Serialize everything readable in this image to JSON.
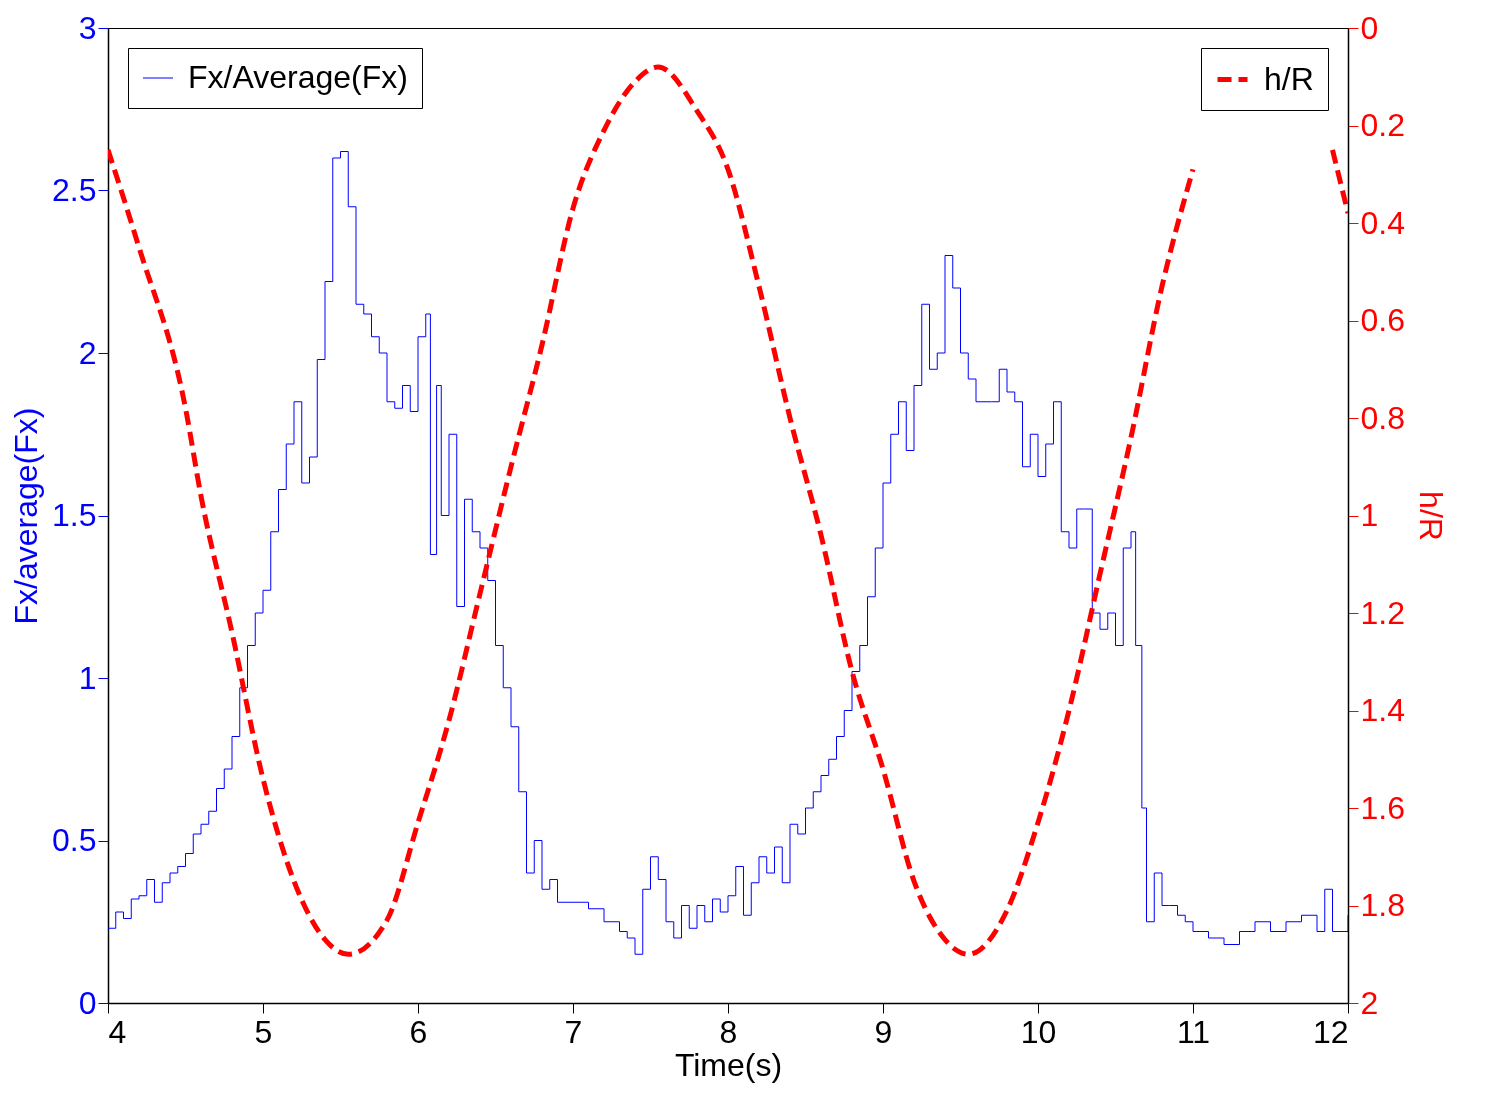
{
  "chart_data": {
    "type": "line",
    "xlabel": "Time(s)",
    "ylabel": "Fx/average(Fx)",
    "y2label": "h/R",
    "xlim": [
      4,
      12
    ],
    "xticks": [
      4,
      5,
      6,
      7,
      8,
      9,
      10,
      11,
      12
    ],
    "ylim": [
      0,
      3
    ],
    "yticks": [
      0,
      0.5,
      1,
      1.5,
      2,
      2.5,
      3
    ],
    "y2lim": [
      2,
      0
    ],
    "y2ticks": [
      0,
      0.2,
      0.4,
      0.6,
      0.8,
      1,
      1.2,
      1.4,
      1.6,
      1.8,
      2
    ],
    "grid": false,
    "legend": "top",
    "series": [
      {
        "name": "Fx/Average(Fx)",
        "type": "step",
        "color": "#0000ff",
        "line_style": "solid",
        "x": [
          4.0,
          4.05,
          4.1,
          4.15,
          4.2,
          4.25,
          4.3,
          4.35,
          4.4,
          4.45,
          4.5,
          4.55,
          4.6,
          4.65,
          4.7,
          4.75,
          4.8,
          4.85,
          4.9,
          4.95,
          5.0,
          5.05,
          5.1,
          5.15,
          5.2,
          5.25,
          5.3,
          5.35,
          5.4,
          5.45,
          5.5,
          5.55,
          5.6,
          5.65,
          5.7,
          5.75,
          5.8,
          5.85,
          5.9,
          5.95,
          6.0,
          6.05,
          6.08,
          6.12,
          6.15,
          6.2,
          6.25,
          6.3,
          6.35,
          6.4,
          6.45,
          6.5,
          6.55,
          6.6,
          6.65,
          6.7,
          6.75,
          6.8,
          6.85,
          6.9,
          7.0,
          7.1,
          7.2,
          7.3,
          7.35,
          7.4,
          7.45,
          7.5,
          7.55,
          7.6,
          7.65,
          7.7,
          7.75,
          7.8,
          7.85,
          7.9,
          7.95,
          8.0,
          8.05,
          8.1,
          8.15,
          8.2,
          8.25,
          8.3,
          8.35,
          8.4,
          8.45,
          8.5,
          8.55,
          8.6,
          8.65,
          8.7,
          8.75,
          8.8,
          8.85,
          8.9,
          8.95,
          9.0,
          9.05,
          9.1,
          9.15,
          9.2,
          9.25,
          9.3,
          9.35,
          9.4,
          9.45,
          9.5,
          9.55,
          9.6,
          9.7,
          9.75,
          9.8,
          9.85,
          9.9,
          9.95,
          10.0,
          10.05,
          10.1,
          10.15,
          10.2,
          10.25,
          10.3,
          10.35,
          10.4,
          10.45,
          10.5,
          10.55,
          10.6,
          10.63,
          10.67,
          10.7,
          10.75,
          10.8,
          10.85,
          10.9,
          10.95,
          11.0,
          11.1,
          11.2,
          11.3,
          11.4,
          11.5,
          11.6,
          11.7,
          11.8,
          11.85,
          11.9,
          12.0
        ],
        "values": [
          0.23,
          0.28,
          0.26,
          0.32,
          0.33,
          0.38,
          0.31,
          0.37,
          0.4,
          0.42,
          0.46,
          0.52,
          0.55,
          0.59,
          0.66,
          0.72,
          0.82,
          0.97,
          1.1,
          1.2,
          1.27,
          1.45,
          1.58,
          1.72,
          1.85,
          1.6,
          1.68,
          1.98,
          2.22,
          2.6,
          2.62,
          2.45,
          2.15,
          2.12,
          2.05,
          2.0,
          1.85,
          1.83,
          1.9,
          1.82,
          2.05,
          2.12,
          1.38,
          1.9,
          1.5,
          1.75,
          1.22,
          1.55,
          1.45,
          1.4,
          1.3,
          1.1,
          0.97,
          0.85,
          0.65,
          0.4,
          0.5,
          0.35,
          0.38,
          0.31,
          0.31,
          0.29,
          0.25,
          0.22,
          0.2,
          0.15,
          0.35,
          0.45,
          0.38,
          0.25,
          0.2,
          0.3,
          0.23,
          0.3,
          0.25,
          0.32,
          0.28,
          0.33,
          0.42,
          0.27,
          0.37,
          0.45,
          0.4,
          0.48,
          0.37,
          0.55,
          0.52,
          0.6,
          0.65,
          0.7,
          0.75,
          0.82,
          0.9,
          1.02,
          1.1,
          1.25,
          1.4,
          1.6,
          1.75,
          1.85,
          1.7,
          1.9,
          2.15,
          1.95,
          2.0,
          2.3,
          2.2,
          2.0,
          1.92,
          1.85,
          1.85,
          1.95,
          1.88,
          1.85,
          1.65,
          1.75,
          1.62,
          1.72,
          1.85,
          1.45,
          1.4,
          1.52,
          1.52,
          1.2,
          1.15,
          1.2,
          1.1,
          1.4,
          1.45,
          1.1,
          0.6,
          0.25,
          0.4,
          0.3,
          0.3,
          0.27,
          0.25,
          0.22,
          0.2,
          0.18,
          0.22,
          0.25,
          0.22,
          0.25,
          0.27,
          0.22,
          0.35,
          0.22,
          0.27
        ]
      },
      {
        "name": "h/R",
        "type": "line",
        "axis": "y2",
        "color": "#ff0000",
        "line_style": "dashed",
        "x": [
          4.0,
          4.2,
          4.5,
          4.6,
          4.8,
          5.0,
          5.2,
          5.4,
          5.55,
          5.8,
          6.0,
          6.2,
          6.4,
          6.6,
          6.8,
          7.0,
          7.2,
          7.4,
          7.55,
          7.8,
          8.0,
          8.2,
          8.4,
          8.6,
          8.8,
          9.0,
          9.2,
          9.4,
          9.55,
          9.8,
          10.0,
          10.2,
          10.4,
          10.6,
          10.8,
          11.0,
          11.2,
          11.4,
          11.6,
          11.9,
          12.0
        ],
        "values": [
          0.25,
          0.45,
          0.78,
          0.96,
          1.24,
          1.54,
          1.75,
          1.87,
          1.9,
          1.83,
          1.63,
          1.42,
          1.16,
          0.9,
          0.65,
          0.37,
          0.21,
          0.11,
          0.08,
          0.17,
          0.29,
          0.53,
          0.8,
          1.04,
          1.32,
          1.52,
          1.75,
          1.87,
          1.9,
          1.81,
          1.63,
          1.4,
          1.12,
          0.84,
          0.53,
          0.29,
          null,
          null,
          null,
          0.25,
          0.38
        ]
      }
    ]
  }
}
